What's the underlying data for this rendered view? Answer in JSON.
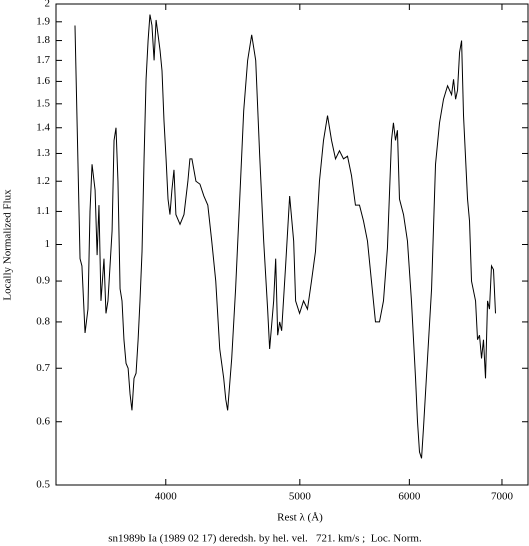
{
  "chart_data": {
    "type": "line",
    "xlabel": "Rest λ (Å)",
    "ylabel": "Locally Normalized Flux",
    "caption": "sn1989b Ia (1989 02 17) deredsh. by hel. vel.   721. km/s ;  Loc. Norm.",
    "xlog": true,
    "ylog": true,
    "color": "#000000",
    "xlim": [
      3332,
      7310
    ],
    "ylim": [
      0.5,
      2
    ],
    "xticks": [
      4000,
      5000,
      6000,
      7000
    ],
    "yticks": [
      0.5,
      0.6,
      0.7,
      0.8,
      0.9,
      1,
      1.1,
      1.2,
      1.3,
      1.4,
      1.5,
      1.6,
      1.7,
      1.8,
      1.9,
      2
    ],
    "x": [
      3439,
      3468,
      3479,
      3497,
      3514,
      3526,
      3538,
      3556,
      3568,
      3579,
      3591,
      3609,
      3621,
      3633,
      3658,
      3670,
      3682,
      3694,
      3707,
      3719,
      3731,
      3744,
      3757,
      3769,
      3781,
      3794,
      3807,
      3820,
      3832,
      3845,
      3858,
      3871,
      3884,
      3896,
      3909,
      3923,
      3936,
      3949,
      3962,
      3975,
      3988,
      4002,
      4015,
      4028,
      4041,
      4055,
      4068,
      4096,
      4123,
      4150,
      4164,
      4178,
      4206,
      4234,
      4262,
      4290,
      4318,
      4347,
      4376,
      4405,
      4420,
      4434,
      4464,
      4493,
      4524,
      4554,
      4584,
      4615,
      4646,
      4677,
      4708,
      4739,
      4755,
      4787,
      4803,
      4819,
      4835,
      4851,
      4883,
      4916,
      4949,
      4965,
      4998,
      5031,
      5064,
      5098,
      5132,
      5166,
      5201,
      5236,
      5271,
      5306,
      5341,
      5377,
      5413,
      5449,
      5485,
      5522,
      5559,
      5596,
      5633,
      5671,
      5709,
      5747,
      5785,
      5824,
      5843,
      5863,
      5882,
      5902,
      5942,
      5981,
      6021,
      6062,
      6082,
      6102,
      6123,
      6143,
      6184,
      6226,
      6267,
      6309,
      6351,
      6394,
      6437,
      6458,
      6480,
      6501,
      6523,
      6545,
      6566,
      6610,
      6632,
      6654,
      6699,
      6721,
      6743,
      6766,
      6788,
      6811,
      6834,
      6856,
      6879,
      6902,
      6925
    ],
    "values": [
      1.88,
      0.96,
      0.94,
      0.775,
      0.83,
      1.1,
      1.26,
      1.17,
      0.97,
      1.12,
      0.85,
      0.96,
      0.82,
      0.85,
      1.04,
      1.35,
      1.4,
      1.2,
      0.88,
      0.85,
      0.76,
      0.71,
      0.7,
      0.65,
      0.62,
      0.68,
      0.69,
      0.76,
      0.85,
      0.98,
      1.28,
      1.61,
      1.8,
      1.94,
      1.88,
      1.7,
      1.91,
      1.83,
      1.75,
      1.65,
      1.43,
      1.28,
      1.14,
      1.09,
      1.17,
      1.24,
      1.09,
      1.06,
      1.09,
      1.2,
      1.28,
      1.28,
      1.2,
      1.19,
      1.15,
      1.12,
      1.01,
      0.9,
      0.74,
      0.68,
      0.64,
      0.62,
      0.72,
      0.88,
      1.14,
      1.47,
      1.7,
      1.83,
      1.7,
      1.29,
      1.01,
      0.83,
      0.74,
      0.85,
      0.96,
      0.77,
      0.8,
      0.78,
      0.94,
      1.15,
      1.01,
      0.85,
      0.82,
      0.85,
      0.83,
      0.9,
      0.98,
      1.2,
      1.35,
      1.45,
      1.35,
      1.28,
      1.31,
      1.28,
      1.29,
      1.22,
      1.12,
      1.12,
      1.07,
      1.01,
      0.9,
      0.8,
      0.8,
      0.85,
      0.99,
      1.35,
      1.42,
      1.35,
      1.39,
      1.14,
      1.09,
      1.01,
      0.85,
      0.68,
      0.6,
      0.55,
      0.54,
      0.59,
      0.72,
      0.88,
      1.26,
      1.42,
      1.52,
      1.58,
      1.54,
      1.61,
      1.52,
      1.56,
      1.74,
      1.8,
      1.45,
      1.14,
      1.07,
      0.9,
      0.85,
      0.76,
      0.77,
      0.72,
      0.76,
      0.68,
      0.85,
      0.83,
      0.94,
      0.93,
      0.82
    ]
  }
}
